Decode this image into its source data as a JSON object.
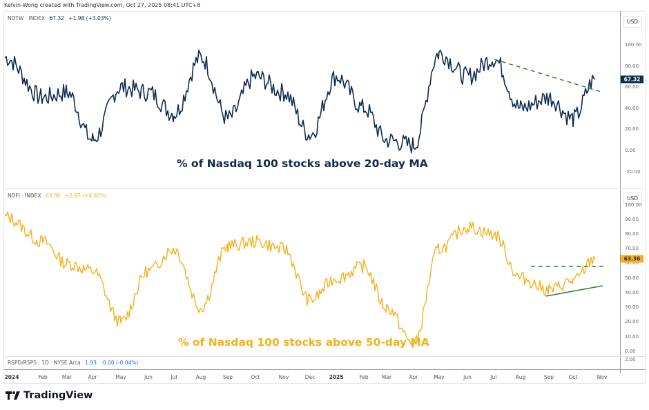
{
  "credit": "Kelvin-Wong created with TradingView.com, Oct 27, 2025 08:41 UTC+8",
  "brand": "TradingView",
  "colors": {
    "ndtw": "#0f2a4e",
    "ndfi": "#f5b01a",
    "trend": "#2e7d32",
    "rspd": "#2962ff"
  },
  "panes": {
    "top": {
      "symbol": "NDTW · INDEX",
      "last": "67.32",
      "change": "+1.98 (+3.03%)",
      "currency": "USD",
      "badge": "67.32",
      "annotation": "% of Nasdaq 100 stocks above 20-day MA",
      "yticks": [
        "100.00",
        "80.00",
        "60.00",
        "40.00",
        "20.00",
        "0.00",
        "-20.00"
      ]
    },
    "bottom": {
      "symbol": "NDFI · INDEX",
      "last": "63.36",
      "change": "+2.97 (+4.92%)",
      "currency": "USD",
      "badge": "63.36",
      "annotation": "% of Nasdaq 100 stocks above 50-day MA",
      "yticks": [
        "100.00",
        "90.00",
        "80.00",
        "70.00",
        "60.00",
        "50.00",
        "40.00",
        "30.00",
        "20.00",
        "10.00",
        "0.00"
      ]
    },
    "rspd": {
      "symbol": "RSPD/RSPS · 1D · NYSE Arca",
      "last": "1.93",
      "change": "-0.00 (-0.04%)",
      "ytick": "2.00"
    }
  },
  "xaxis": [
    "2024",
    "Feb",
    "Mar",
    "Apr",
    "May",
    "Jun",
    "Jul",
    "Aug",
    "Sep",
    "Oct",
    "Nov",
    "Dec",
    "2025",
    "Feb",
    "Mar",
    "Apr",
    "May",
    "Jun",
    "Jul",
    "Aug",
    "Sep",
    "Oct",
    "Nov"
  ],
  "chart_data": [
    {
      "type": "line",
      "title": "NDTW · INDEX — % of Nasdaq 100 stocks above 20-day MA",
      "xlabel": "",
      "ylabel": "USD",
      "ylim": [
        -30,
        110
      ],
      "grid": false,
      "legend_position": "top-left",
      "x": [
        "2024-01",
        "2024-02",
        "2024-03",
        "2024-04",
        "2024-05",
        "2024-06",
        "2024-07",
        "2024-08",
        "2024-09",
        "2024-10",
        "2024-11",
        "2024-12",
        "2025-01",
        "2025-02",
        "2025-03",
        "2025-04",
        "2025-05",
        "2025-06",
        "2025-07",
        "2025-08",
        "2025-09",
        "2025-10",
        "2025-10-27"
      ],
      "series": [
        {
          "name": "NDTW",
          "values": [
            88,
            50,
            55,
            10,
            60,
            55,
            35,
            88,
            30,
            70,
            55,
            15,
            70,
            40,
            10,
            5,
            92,
            70,
            87,
            40,
            50,
            30,
            67.32
          ]
        }
      ],
      "annotations": [
        {
          "type": "dashed-trendline",
          "from": [
            "2025-07",
            87
          ],
          "to": [
            "2025-11",
            53
          ]
        },
        {
          "type": "text",
          "text": "% of Nasdaq 100 stocks above 20-day MA"
        }
      ],
      "last_value": 67.32
    },
    {
      "type": "line",
      "title": "NDFI · INDEX — % of Nasdaq 100 stocks above 50-day MA",
      "xlabel": "",
      "ylabel": "USD",
      "ylim": [
        0,
        100
      ],
      "grid": false,
      "legend_position": "top-left",
      "x": [
        "2024-01",
        "2024-02",
        "2024-03",
        "2024-04",
        "2024-05",
        "2024-06",
        "2024-07",
        "2024-08",
        "2024-09",
        "2024-10",
        "2024-11",
        "2024-12",
        "2025-01",
        "2025-02",
        "2025-03",
        "2025-04",
        "2025-05",
        "2025-06",
        "2025-07",
        "2025-08",
        "2025-09",
        "2025-10",
        "2025-10-27"
      ],
      "series": [
        {
          "name": "NDFI",
          "values": [
            92,
            75,
            60,
            55,
            20,
            55,
            70,
            30,
            72,
            75,
            70,
            35,
            50,
            58,
            30,
            5,
            70,
            85,
            80,
            50,
            42,
            48,
            63.36
          ]
        }
      ],
      "annotations": [
        {
          "type": "dashed-resistance",
          "level": 58,
          "from": "2025-08",
          "to": "2025-11"
        },
        {
          "type": "support-trendline",
          "from": [
            "2025-09",
            38
          ],
          "to": [
            "2025-11",
            45
          ]
        },
        {
          "type": "text",
          "text": "% of Nasdaq 100 stocks above 50-day MA"
        }
      ],
      "last_value": 63.36
    }
  ]
}
